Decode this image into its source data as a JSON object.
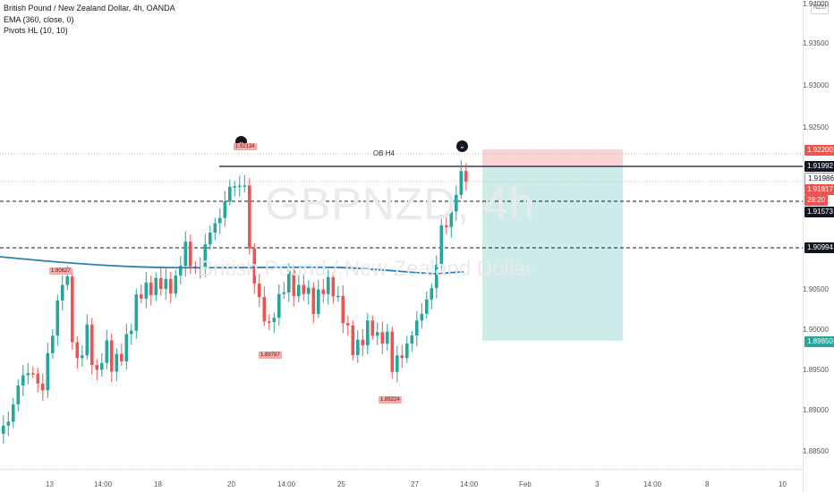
{
  "header": {
    "symbol_line": "British Pound / New Zealand Dollar, 4h, OANDA",
    "indicator_ema": "EMA (360, close, 0)",
    "indicator_pivots": "Pivots HL (10, 10)"
  },
  "watermark": {
    "ticker": "GBPNZD, 4h",
    "name": "British Pound / New Zealand Dollar"
  },
  "currency_button": "NZD",
  "y_axis_labels": [
    "1.94000",
    "1.93500",
    "1.93000",
    "1.92500",
    "1.90500",
    "1.90000",
    "1.89500",
    "1.89000",
    "1.88500"
  ],
  "x_axis_labels": [
    "13",
    "14:00",
    "18",
    "20",
    "14:00",
    "25",
    "27",
    "14:00",
    "Feb",
    "3",
    "14:00",
    "8",
    "10"
  ],
  "price_tags": {
    "target_stop": "1.92200",
    "ob_line": "1.91992",
    "last_price": "1.91986",
    "current": "1.91817",
    "countdown": "28:20",
    "level_dash1": "1.91573",
    "level_dash2": "1.90994",
    "target": "1.89850"
  },
  "pivots": {
    "high_left": "1.90627",
    "low_mid": "1.89787",
    "low_right": "1.89224",
    "high_mid": "1.92134"
  },
  "annotation": {
    "ob_label": "OB H4"
  },
  "colors": {
    "bull": "#26a69a",
    "bear": "#ef5350",
    "ema": "#2a7fb5",
    "stop_zone": "#f9d4d4",
    "target_zone": "#cdebe9"
  }
}
